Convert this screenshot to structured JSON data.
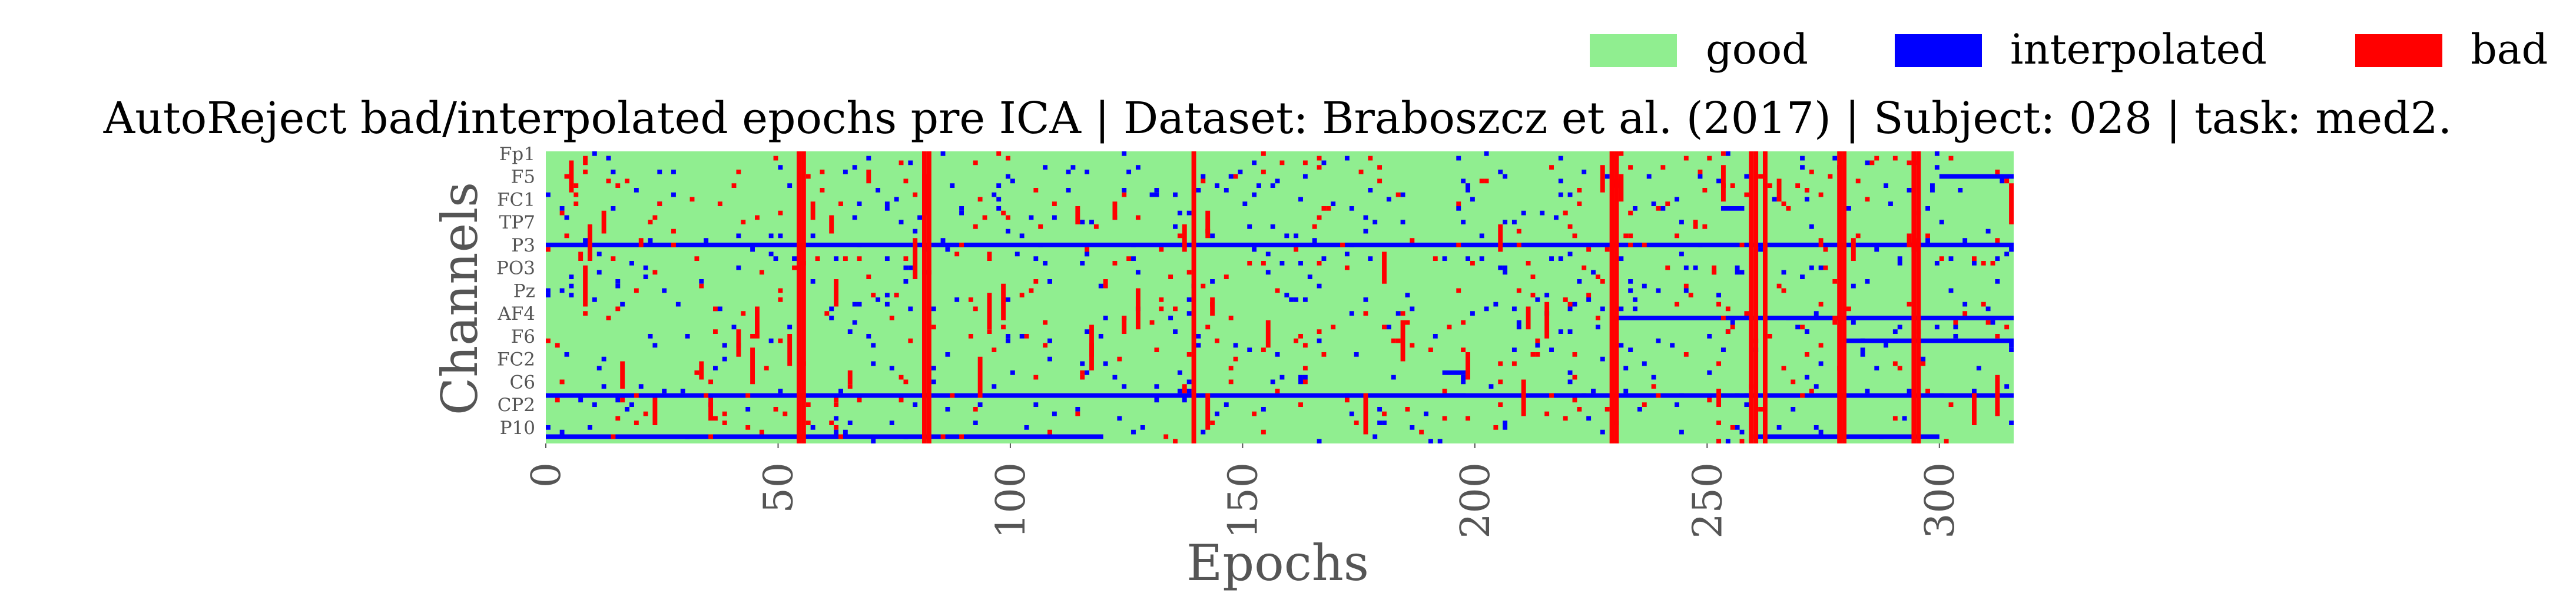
{
  "chart_data": {
    "type": "heatmap",
    "title": "AutoReject bad/interpolated epochs pre ICA | Dataset: Braboszcz et al. (2017) | Subject: 028 | task: med2.",
    "xlabel": "Epochs",
    "ylabel": "Channels",
    "xlim": [
      0,
      316
    ],
    "xticks": [
      "0",
      "50",
      "100",
      "150",
      "200",
      "250",
      "300"
    ],
    "n_epochs": 316,
    "n_channels": 64,
    "ytick_labels": [
      "Fp1",
      "F5",
      "FC1",
      "TP7",
      "P3",
      "PO3",
      "Pz",
      "AF4",
      "F6",
      "FC2",
      "C6",
      "CP2",
      "P10"
    ],
    "ytick_channel_index": [
      0,
      5,
      10,
      15,
      20,
      25,
      30,
      35,
      40,
      45,
      50,
      55,
      60
    ],
    "legend": [
      {
        "label": "good",
        "color": "#90ee90"
      },
      {
        "label": "interpolated",
        "color": "#0000ff"
      },
      {
        "label": "bad",
        "color": "#ff0000"
      }
    ],
    "legend_placement": "top-right",
    "grid": false,
    "bad_epochs": [
      54,
      55,
      81,
      82,
      139,
      229,
      230,
      259,
      260,
      262,
      278,
      279,
      294,
      295
    ],
    "mostly_interpolated_channels": [
      20,
      53
    ],
    "cells": [
      {
        "ch": 20,
        "epochs": "most",
        "value": "interpolated"
      },
      {
        "ch": 53,
        "epochs": "most",
        "value": "interpolated"
      },
      {
        "ch": 62,
        "epochs": [
          0,
          120
        ],
        "value": "interpolated"
      },
      {
        "ch": 62,
        "epochs": [
          260,
          300
        ],
        "value": "interpolated"
      },
      {
        "ch": 36,
        "epochs": [
          230,
          316
        ],
        "value": "interpolated"
      },
      {
        "ch": 41,
        "epochs": [
          280,
          316
        ],
        "value": "interpolated"
      },
      {
        "ch": 48,
        "epochs": [
          193,
          198
        ],
        "value": "interpolated"
      },
      {
        "ch": 53,
        "epochs": [
          193,
          198
        ],
        "value": "interpolated"
      },
      {
        "ch": 12,
        "epochs": [
          253,
          258
        ],
        "value": "interpolated"
      },
      {
        "ch": 5,
        "epochs": [
          300,
          316
        ],
        "value": "interpolated"
      }
    ]
  }
}
